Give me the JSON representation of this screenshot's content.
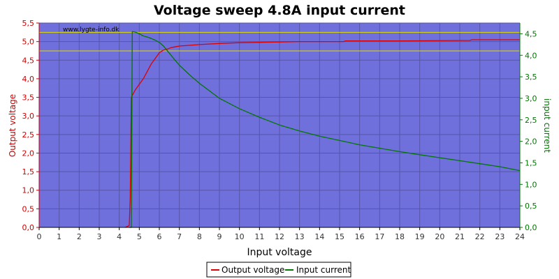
{
  "chart_data": {
    "type": "line",
    "title": "Voltage sweep 4.8A input current",
    "watermark": "www.lygte-info.dk",
    "xlabel": "Input voltage",
    "ylabel_left": "Output voltage",
    "ylabel_right": "input current",
    "xlim": [
      0,
      24
    ],
    "ylim_left": [
      0,
      5.5
    ],
    "ylim_right": [
      0,
      4.75
    ],
    "x_ticks": [
      "0",
      "1",
      "2",
      "3",
      "4",
      "5",
      "6",
      "7",
      "8",
      "9",
      "10",
      "11",
      "12",
      "13",
      "14",
      "15",
      "16",
      "17",
      "18",
      "19",
      "20",
      "21",
      "22",
      "23",
      "24"
    ],
    "y_left_ticks": [
      "0,0",
      "0,5",
      "1,0",
      "1,5",
      "2,0",
      "2,5",
      "3,0",
      "3,5",
      "4,0",
      "4,5",
      "5,0",
      "5,5"
    ],
    "y_right_ticks": [
      "0,0",
      "0,5",
      "1,0",
      "1,5",
      "2,0",
      "2,5",
      "3,0",
      "3,5",
      "4,0",
      "4,5"
    ],
    "reference_lines_left": [
      4.75,
      5.25
    ],
    "grid": true,
    "legend_position": "bottom-center",
    "colors": {
      "plot_bg": "#7070dd",
      "grid": "#5555aa",
      "left_axis": "#cc0000",
      "right_axis": "#007700",
      "reference": "#dddd00",
      "output_voltage": "#dd0000",
      "input_current": "#007700"
    },
    "series": [
      {
        "name": "Output voltage",
        "axis": "left",
        "x": [
          4.3,
          4.5,
          4.55,
          4.6,
          4.8,
          5.0,
          5.2,
          5.4,
          5.6,
          5.8,
          6.0,
          6.2,
          6.4,
          6.6,
          7.0,
          7.5,
          8.0,
          9.0,
          10.0,
          11.0,
          12.0,
          13.0,
          15.2,
          15.3,
          18.0,
          21.5,
          21.6,
          24.0
        ],
        "values": [
          0.0,
          0.05,
          0.8,
          3.5,
          3.7,
          3.85,
          4.0,
          4.2,
          4.4,
          4.55,
          4.7,
          4.77,
          4.8,
          4.84,
          4.88,
          4.9,
          4.92,
          4.95,
          4.97,
          4.98,
          4.99,
          5.0,
          5.0,
          5.02,
          5.02,
          5.03,
          5.05,
          5.05
        ]
      },
      {
        "name": "Input current",
        "axis": "right",
        "x": [
          4.5,
          4.6,
          4.65,
          4.8,
          5.0,
          5.2,
          5.5,
          5.8,
          6.0,
          6.2,
          6.5,
          6.8,
          7.0,
          7.5,
          8.0,
          9.0,
          10.0,
          11.0,
          12.0,
          13.0,
          14.0,
          15.0,
          16.0,
          17.0,
          18.0,
          19.0,
          20.0,
          21.0,
          22.0,
          23.0,
          24.0
        ],
        "values": [
          0.0,
          0.0,
          4.55,
          4.54,
          4.5,
          4.45,
          4.41,
          4.35,
          4.3,
          4.22,
          4.05,
          3.88,
          3.77,
          3.55,
          3.35,
          3.0,
          2.76,
          2.56,
          2.38,
          2.24,
          2.12,
          2.02,
          1.92,
          1.84,
          1.76,
          1.69,
          1.62,
          1.55,
          1.48,
          1.41,
          1.32
        ]
      }
    ]
  }
}
